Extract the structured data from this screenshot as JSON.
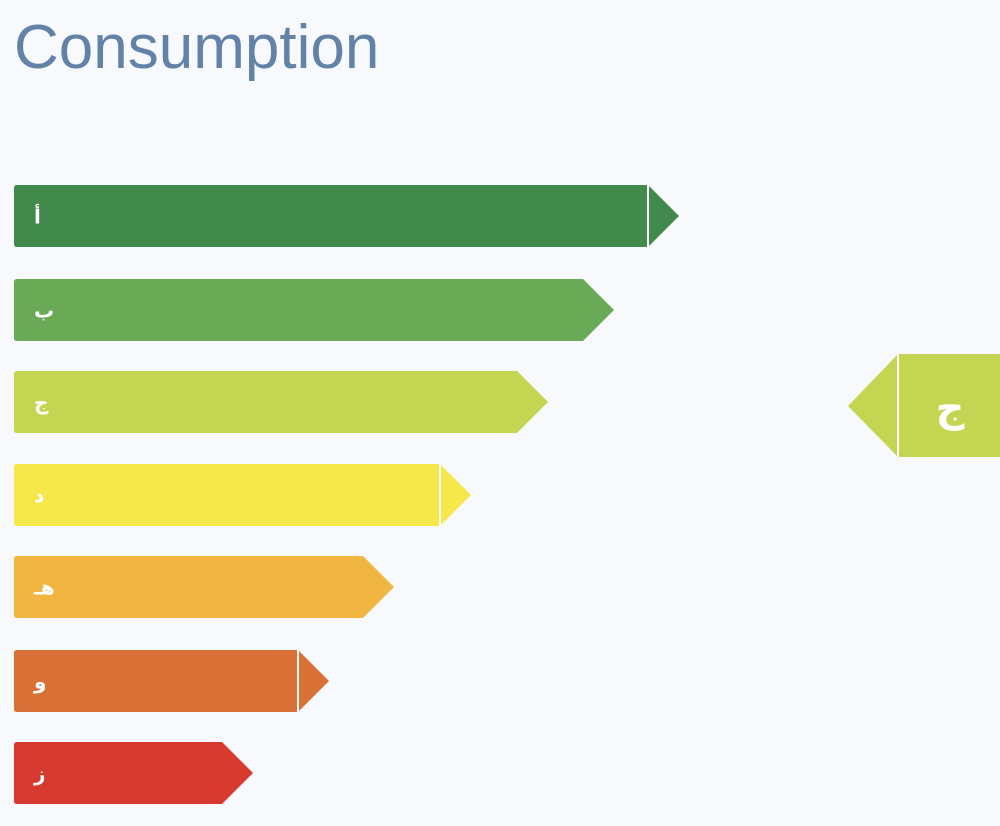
{
  "header": {
    "title": "Consumption"
  },
  "ratings": [
    {
      "label": "أ",
      "color": "#418a4b"
    },
    {
      "label": "ب",
      "color": "#6aa955"
    },
    {
      "label": "ج",
      "color": "#c4d651"
    },
    {
      "label": "د",
      "color": "#f6e84a"
    },
    {
      "label": "هـ",
      "color": "#f1b642"
    },
    {
      "label": "و",
      "color": "#d97136"
    },
    {
      "label": "ز",
      "color": "#d63a2e"
    }
  ],
  "current": {
    "label": "ج",
    "color": "#c4d651"
  }
}
